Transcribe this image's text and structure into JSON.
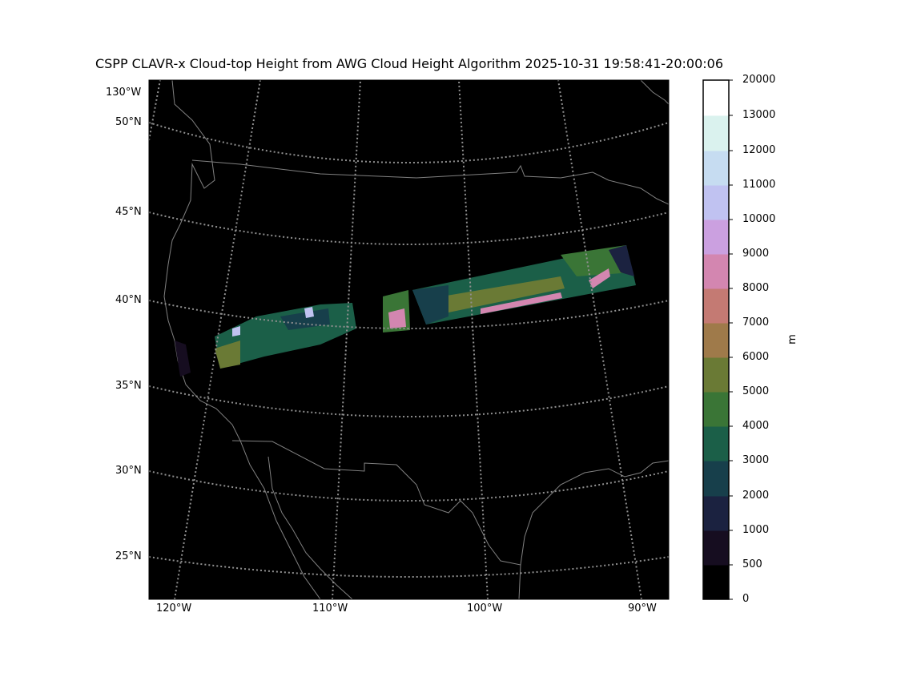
{
  "title": "CSPP CLAVR-x Cloud-top Height from AWG Cloud Height Algorithm 2025-10-31 19:58:41-20:00:06",
  "map": {
    "lat_labels": [
      "50°N",
      "45°N",
      "40°N",
      "35°N",
      "30°N",
      "25°N"
    ],
    "lon_labels_bottom": [
      "120°W",
      "110°W",
      "100°W",
      "90°W"
    ],
    "lon_label_top": "130°W",
    "background": "#000000",
    "coastline_color": "#808080",
    "graticule_style": "dotted grey"
  },
  "colorbar": {
    "unit_label": "m",
    "ticks": [
      "0",
      "500",
      "1000",
      "2000",
      "3000",
      "4000",
      "5000",
      "6000",
      "7000",
      "8000",
      "9000",
      "10000",
      "11000",
      "12000",
      "13000",
      "20000"
    ],
    "colors": [
      "#000000",
      "#160d20",
      "#1b2240",
      "#173f4b",
      "#1b5f48",
      "#3a7536",
      "#6a7a35",
      "#9f7a4a",
      "#c47a73",
      "#d386b0",
      "#cba0e0",
      "#c0c2f1",
      "#c6dcf1",
      "#daf2ee",
      "#ffffff"
    ]
  }
}
